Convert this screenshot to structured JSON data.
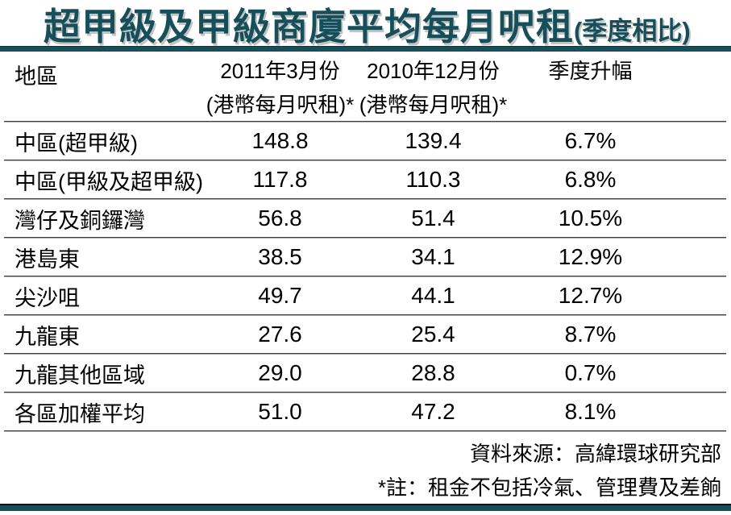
{
  "title": {
    "main": "超甲級及甲級商廈平均每月呎租",
    "suffix": "(季度相比)"
  },
  "table": {
    "header": {
      "region": "地區",
      "col_2011_line1": "2011年3月份",
      "col_2011_line2": "(港幣每月呎租)*",
      "col_2010_line1": "2010年12月份",
      "col_2010_line2": "(港幣每月呎租)*",
      "change": "季度升幅"
    },
    "rows": [
      {
        "region": "中區(超甲級)",
        "rent_2011_03": "148.8",
        "rent_2010_12": "139.4",
        "change": "6.7%"
      },
      {
        "region": "中區(甲級及超甲級)",
        "rent_2011_03": "117.8",
        "rent_2010_12": "110.3",
        "change": "6.8%"
      },
      {
        "region": "灣仔及銅鑼灣",
        "rent_2011_03": "56.8",
        "rent_2010_12": "51.4",
        "change": "10.5%"
      },
      {
        "region": "港島東",
        "rent_2011_03": "38.5",
        "rent_2010_12": "34.1",
        "change": "12.9%"
      },
      {
        "region": "尖沙咀",
        "rent_2011_03": "49.7",
        "rent_2010_12": "44.1",
        "change": "12.7%"
      },
      {
        "region": "九龍東",
        "rent_2011_03": "27.6",
        "rent_2010_12": "25.4",
        "change": "8.7%"
      },
      {
        "region": "九龍其他區域",
        "rent_2011_03": "29.0",
        "rent_2010_12": "28.8",
        "change": "0.7%"
      },
      {
        "region": "各區加權平均",
        "rent_2011_03": "51.0",
        "rent_2010_12": "47.2",
        "change": "8.1%"
      }
    ]
  },
  "footer": {
    "source": "資料來源：高緯環球研究部",
    "note": "*註：租金不包括冷氣、管理費及差餉"
  },
  "colors": {
    "accent_teal": "#164F5A",
    "divider_dark": "#3f3f3f",
    "divider_light": "#ababab",
    "text": "#000000",
    "background": "#ffffff"
  },
  "chart_data": {
    "type": "table",
    "title": "超甲級及甲級商廈平均每月呎租(季度相比)",
    "columns": [
      "地區",
      "2011年3月份 (港幣每月呎租)*",
      "2010年12月份 (港幣每月呎租)*",
      "季度升幅"
    ],
    "rows": [
      [
        "中區(超甲級)",
        148.8,
        139.4,
        "6.7%"
      ],
      [
        "中區(甲級及超甲級)",
        117.8,
        110.3,
        "6.8%"
      ],
      [
        "灣仔及銅鑼灣",
        56.8,
        51.4,
        "10.5%"
      ],
      [
        "港島東",
        38.5,
        34.1,
        "12.9%"
      ],
      [
        "尖沙咀",
        49.7,
        44.1,
        "12.7%"
      ],
      [
        "九龍東",
        27.6,
        25.4,
        "8.7%"
      ],
      [
        "九龍其他區域",
        29.0,
        28.8,
        "0.7%"
      ],
      [
        "各區加權平均",
        51.0,
        47.2,
        "8.1%"
      ]
    ],
    "source": "資料來源：高緯環球研究部",
    "note": "*註：租金不包括冷氣、管理費及差餉"
  }
}
